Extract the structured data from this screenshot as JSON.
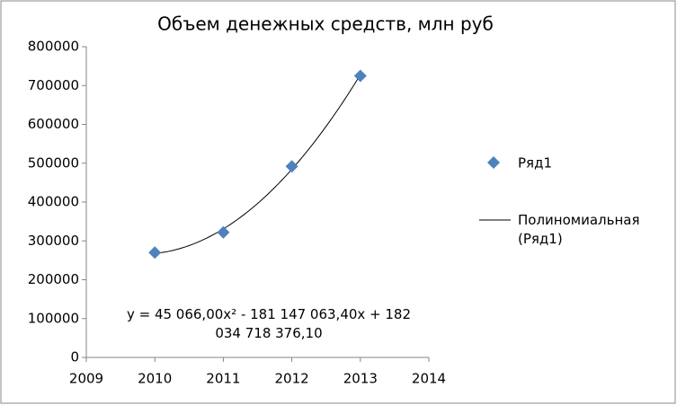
{
  "chart_data": {
    "type": "scatter",
    "title": "Объем денежных средств, млн руб",
    "series": [
      {
        "name": "Ряд1",
        "color": "#4f81bd",
        "x": [
          2010,
          2011,
          2012,
          2013
        ],
        "values": [
          270000,
          322000,
          492000,
          725000
        ]
      }
    ],
    "trendline": {
      "name": "Полиномиальная (Ряд1)",
      "color": "#000000",
      "coefficients": [
        45066.0,
        -181147063.4,
        182034718376.1
      ],
      "equation": "y = 45 066,00x² - 181 147 063,40x + 182 034 718 376,10"
    },
    "xlim": [
      2009,
      2014
    ],
    "xticks": [
      2009,
      2010,
      2011,
      2012,
      2013,
      2014
    ],
    "ylim": [
      0,
      800000
    ],
    "yticks": [
      0,
      100000,
      200000,
      300000,
      400000,
      500000,
      600000,
      700000,
      800000
    ],
    "grid": false,
    "legend": "right"
  }
}
